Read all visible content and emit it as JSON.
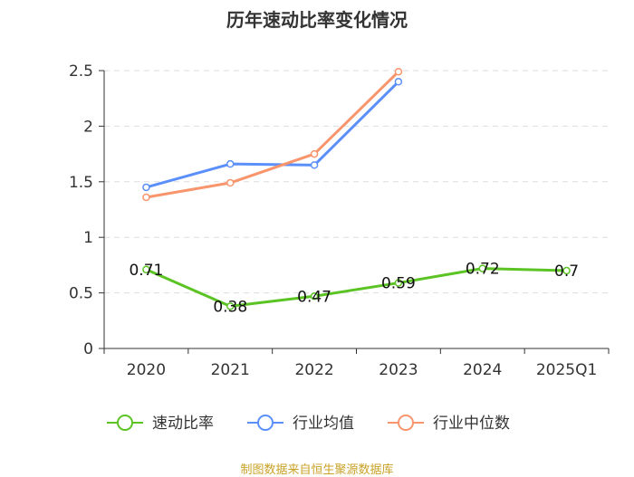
{
  "chart_data": {
    "type": "line",
    "title": "历年速动比率变化情况",
    "categories": [
      "2020",
      "2021",
      "2022",
      "2023",
      "2024",
      "2025Q1"
    ],
    "ylim": [
      0,
      2.5
    ],
    "yticks": [
      "0",
      "0.5",
      "1",
      "1.5",
      "2",
      "2.5"
    ],
    "grid": true,
    "legend_position": "bottom",
    "series": [
      {
        "name": "速动比率",
        "color": "#5bc424",
        "values": [
          0.71,
          0.38,
          0.47,
          0.59,
          0.72,
          0.7
        ],
        "labels": [
          "0.71",
          "0.38",
          "0.47",
          "0.59",
          "0.72",
          "0.7"
        ]
      },
      {
        "name": "行业均值",
        "color": "#5b8ff9",
        "values": [
          1.45,
          1.66,
          1.65,
          2.4,
          null,
          null
        ]
      },
      {
        "name": "行业中位数",
        "color": "#f8956c",
        "values": [
          1.36,
          1.49,
          1.75,
          2.49,
          null,
          null
        ]
      }
    ]
  },
  "source": "制图数据来自恒生聚源数据库"
}
